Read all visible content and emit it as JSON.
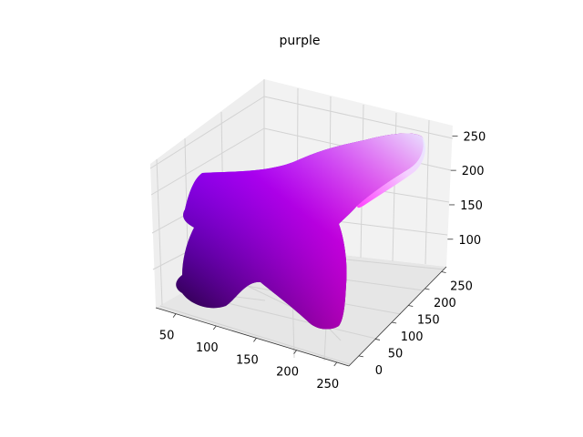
{
  "chart_data": {
    "type": "surface3d",
    "title": "purple",
    "xlabel": "",
    "ylabel": "",
    "zlabel": "",
    "x_ticks": [
      "50",
      "100",
      "150",
      "200",
      "250"
    ],
    "y_ticks": [
      "0",
      "50",
      "100",
      "150",
      "200",
      "250"
    ],
    "z_ticks": [
      "100",
      "150",
      "200",
      "250"
    ],
    "xlim": [
      25,
      265
    ],
    "ylim": [
      -30,
      265
    ],
    "zlim": [
      60,
      265
    ],
    "grid": true,
    "colors": {
      "dark_corner": "#1a0020",
      "blue_corner": "#4a00ff",
      "pink_corner": "#ff0090",
      "magenta_mid": "#e000ff",
      "light_tail": "#e8e0ff",
      "pane": "#f2f2f2",
      "pane_dark": "#e6e6e6",
      "grid": "#d3d3d3"
    }
  }
}
